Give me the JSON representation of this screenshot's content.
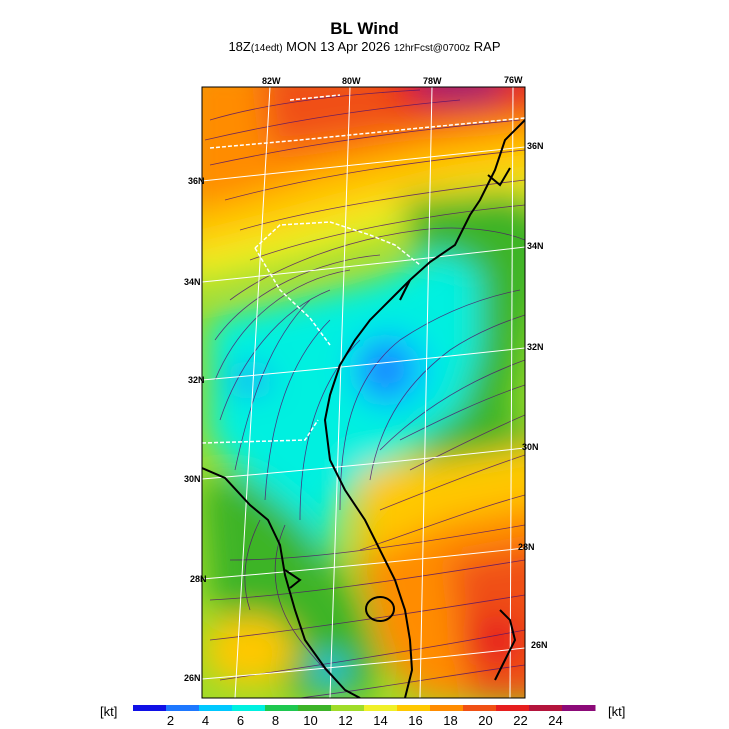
{
  "title": "BL Wind",
  "subtitle": {
    "prefix": "18Z",
    "local": "(14edt)",
    "date": "MON 13 Apr 2026",
    "fcst": "12hrFcst@0700z",
    "model": "RAP"
  },
  "lon_labels": [
    "82W",
    "80W",
    "78W",
    "76W"
  ],
  "lat_labels_left": [
    "36N",
    "34N",
    "32N",
    "30N",
    "28N",
    "26N"
  ],
  "lat_labels_right": [
    "36N",
    "34N",
    "32N",
    "30N",
    "28N",
    "26N"
  ],
  "colorbar": {
    "unit_left": "[kt]",
    "unit_right": "[kt]",
    "ticks": [
      "2",
      "4",
      "6",
      "8",
      "10",
      "12",
      "14",
      "16",
      "18",
      "20",
      "22",
      "24"
    ],
    "colors": [
      "#1010e6",
      "#1e78ff",
      "#00c8ff",
      "#00f0e0",
      "#1ec850",
      "#3cb428",
      "#a0dc28",
      "#f0f028",
      "#ffc800",
      "#ff8c00",
      "#f05014",
      "#e61e1e",
      "#b4143c",
      "#8c0a78"
    ]
  },
  "colors": {
    "state_borders": "#ffffff",
    "coastline": "#000000",
    "streamlines": "#50106e"
  }
}
